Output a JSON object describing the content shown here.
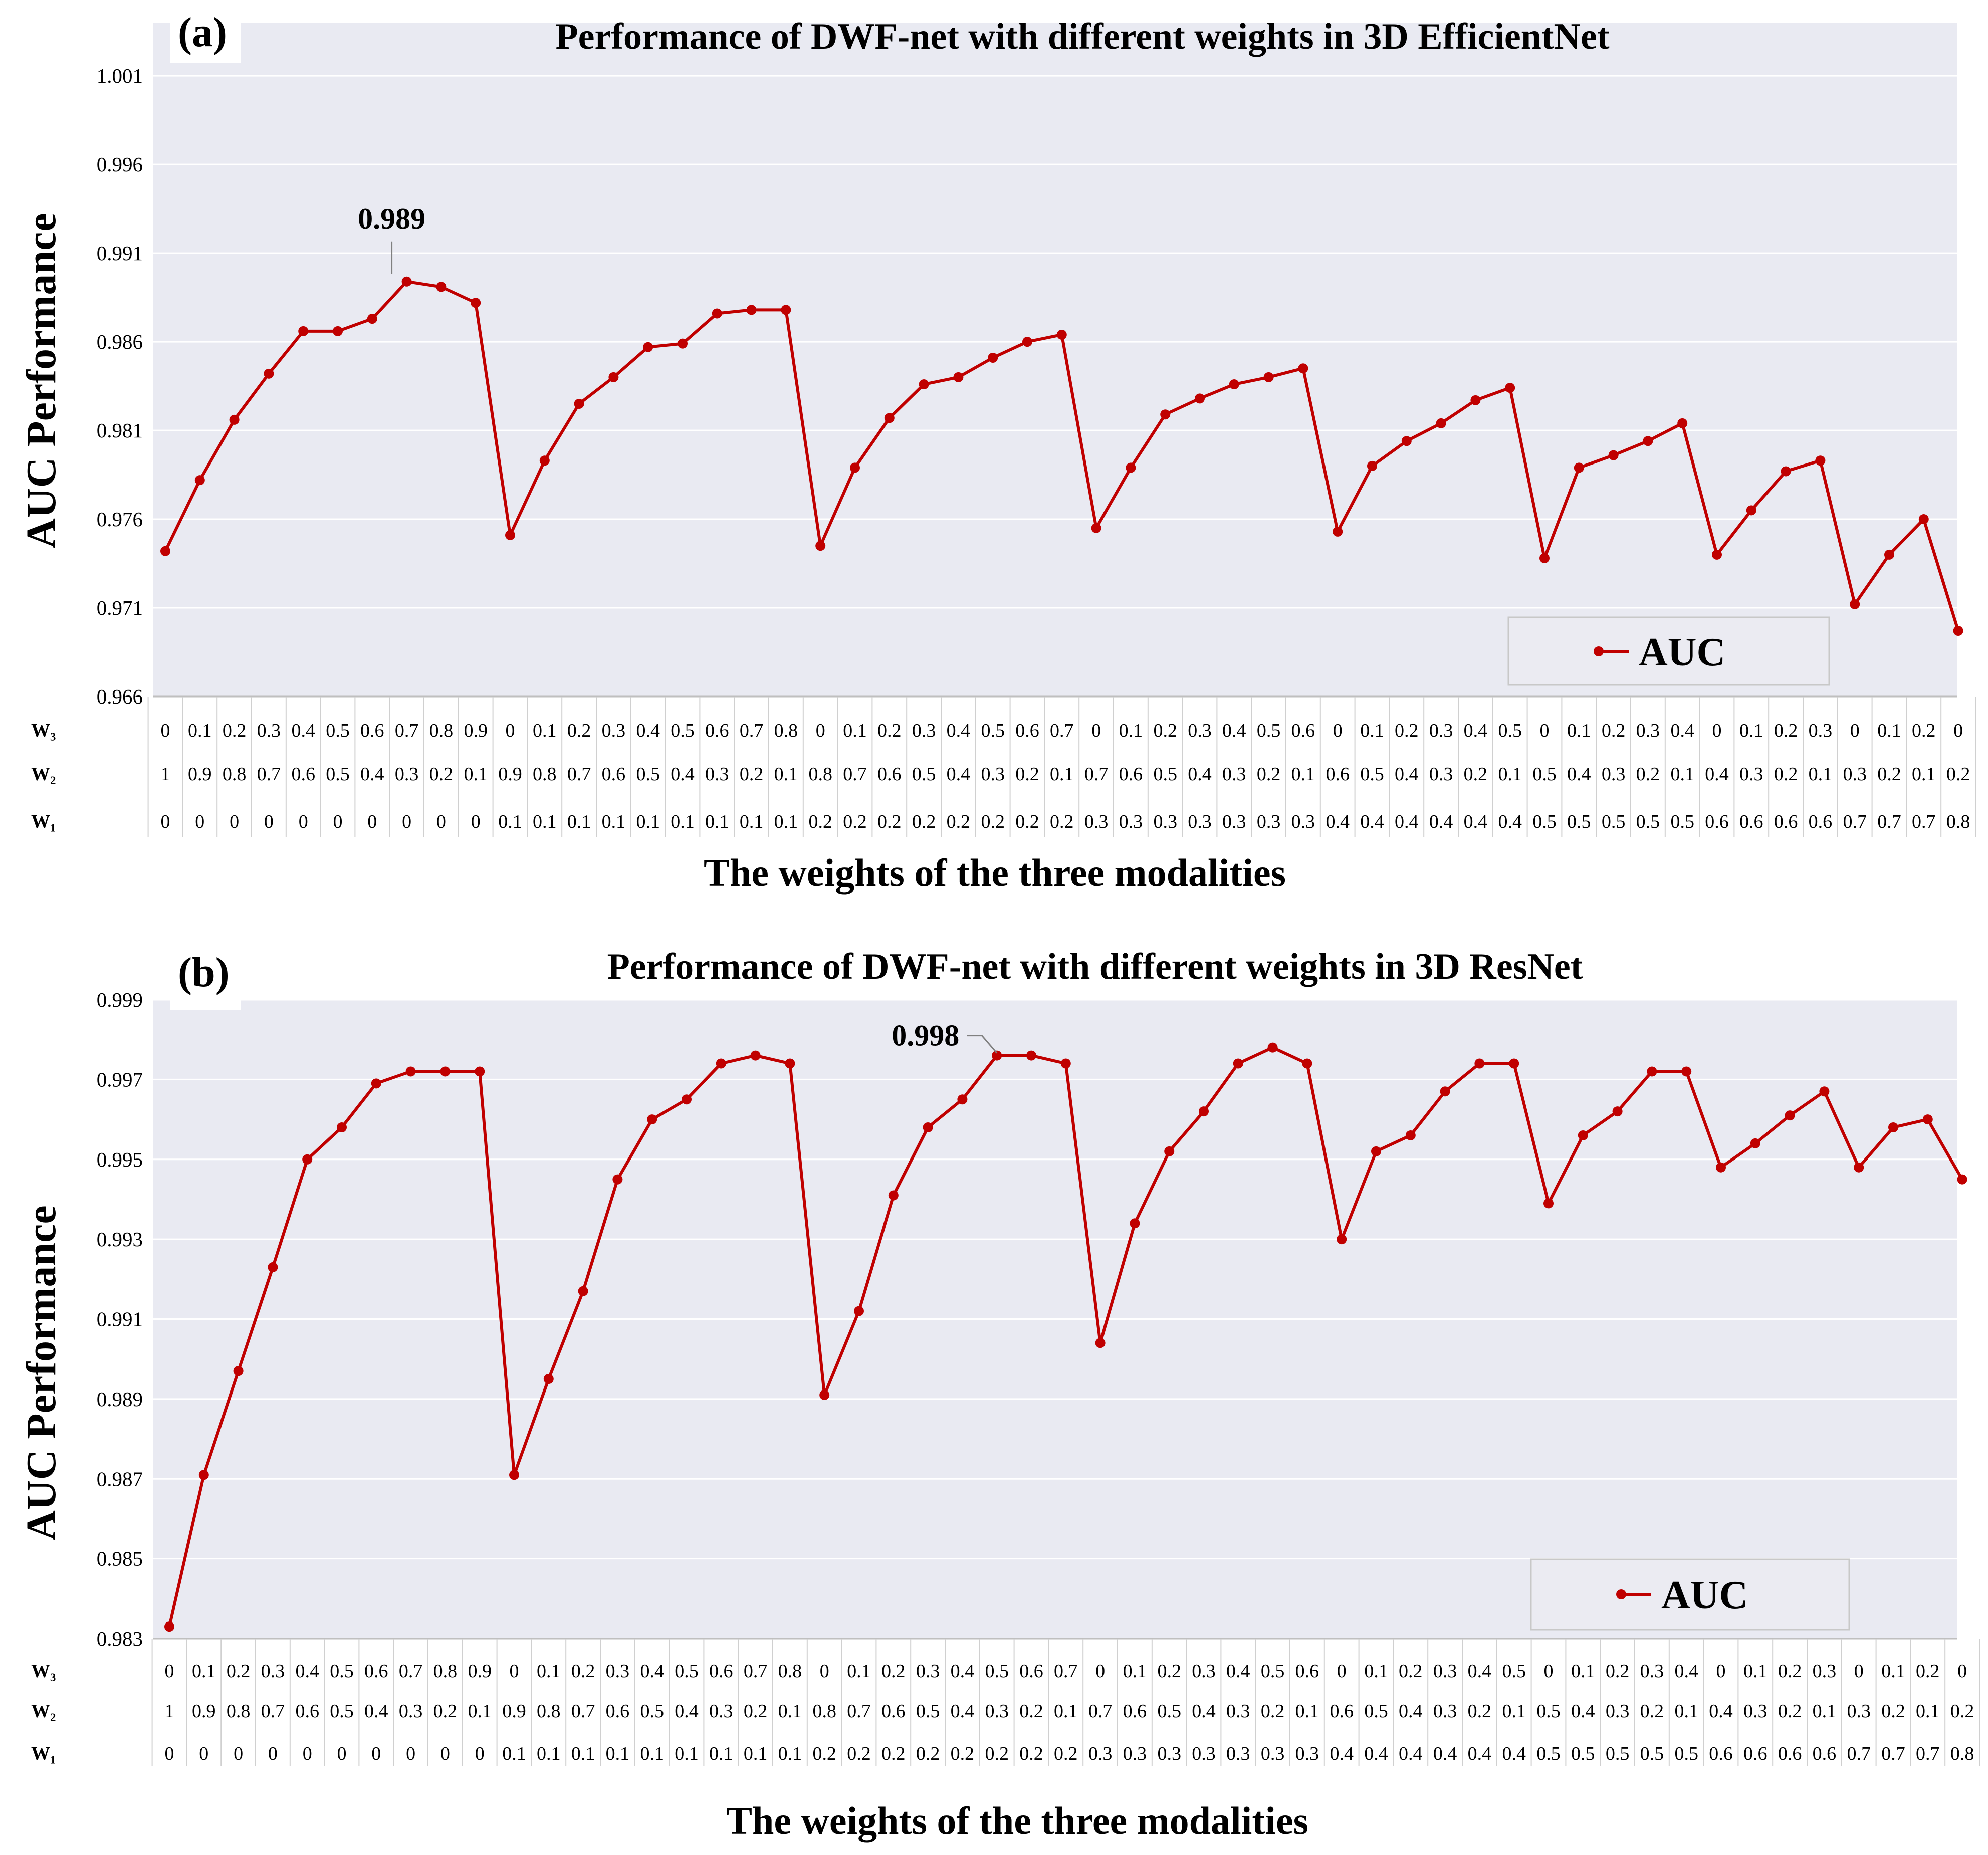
{
  "colors": {
    "plot_bg": "#e9eaf2",
    "grid": "#ffffff",
    "line": "#c00000",
    "legend_bg": "#ebebf2"
  },
  "weight_row_labels": [
    "W₃",
    "W₂",
    "W₁"
  ],
  "chart_data": [
    {
      "panel": "(a)",
      "type": "line",
      "title": "Performance of DWF-net with different weights in 3D EfficientNet",
      "xlabel": "The weights of the three modalities",
      "ylabel": "AUC  Performance",
      "ylim": [
        0.966,
        1.004
      ],
      "yticks": [
        "0.966",
        "0.971",
        "0.976",
        "0.981",
        "0.986",
        "0.991",
        "0.996",
        "1.001"
      ],
      "legend": "AUC",
      "legend_position": "bottom-right",
      "annotation": {
        "text": "0.989",
        "index": 7
      },
      "categories": {
        "w3": [
          "0",
          "0.1",
          "0.2",
          "0.3",
          "0.4",
          "0.5",
          "0.6",
          "0.7",
          "0.8",
          "0.9",
          "0",
          "0.1",
          "0.2",
          "0.3",
          "0.4",
          "0.5",
          "0.6",
          "0.7",
          "0.8",
          "0",
          "0.1",
          "0.2",
          "0.3",
          "0.4",
          "0.5",
          "0.6",
          "0.7",
          "0",
          "0.1",
          "0.2",
          "0.3",
          "0.4",
          "0.5",
          "0.6",
          "0",
          "0.1",
          "0.2",
          "0.3",
          "0.4",
          "0.5",
          "0",
          "0.1",
          "0.2",
          "0.3",
          "0.4",
          "0",
          "0.1",
          "0.2",
          "0.3",
          "0",
          "0.1",
          "0.2",
          "0"
        ],
        "w2": [
          "1",
          "0.9",
          "0.8",
          "0.7",
          "0.6",
          "0.5",
          "0.4",
          "0.3",
          "0.2",
          "0.1",
          "0.9",
          "0.8",
          "0.7",
          "0.6",
          "0.5",
          "0.4",
          "0.3",
          "0.2",
          "0.1",
          "0.8",
          "0.7",
          "0.6",
          "0.5",
          "0.4",
          "0.3",
          "0.2",
          "0.1",
          "0.7",
          "0.6",
          "0.5",
          "0.4",
          "0.3",
          "0.2",
          "0.1",
          "0.6",
          "0.5",
          "0.4",
          "0.3",
          "0.2",
          "0.1",
          "0.5",
          "0.4",
          "0.3",
          "0.2",
          "0.1",
          "0.4",
          "0.3",
          "0.2",
          "0.1",
          "0.3",
          "0.2",
          "0.1",
          "0.2"
        ],
        "w1": [
          "0",
          "0",
          "0",
          "0",
          "0",
          "0",
          "0",
          "0",
          "0",
          "0",
          "0.1",
          "0.1",
          "0.1",
          "0.1",
          "0.1",
          "0.1",
          "0.1",
          "0.1",
          "0.1",
          "0.2",
          "0.2",
          "0.2",
          "0.2",
          "0.2",
          "0.2",
          "0.2",
          "0.2",
          "0.3",
          "0.3",
          "0.3",
          "0.3",
          "0.3",
          "0.3",
          "0.3",
          "0.4",
          "0.4",
          "0.4",
          "0.4",
          "0.4",
          "0.4",
          "0.5",
          "0.5",
          "0.5",
          "0.5",
          "0.5",
          "0.6",
          "0.6",
          "0.6",
          "0.6",
          "0.7",
          "0.7",
          "0.7",
          "0.8"
        ]
      },
      "series": [
        {
          "name": "AUC",
          "values": [
            0.9742,
            0.9782,
            0.9816,
            0.9842,
            0.9866,
            0.9866,
            0.9873,
            0.9894,
            0.9891,
            0.9882,
            0.9751,
            0.9793,
            0.9825,
            0.984,
            0.9857,
            0.9859,
            0.9876,
            0.9878,
            0.9878,
            0.9745,
            0.9789,
            0.9817,
            0.9836,
            0.984,
            0.9851,
            0.986,
            0.9864,
            0.9755,
            0.9789,
            0.9819,
            0.9828,
            0.9836,
            0.984,
            0.9845,
            0.9753,
            0.979,
            0.9804,
            0.9814,
            0.9827,
            0.9834,
            0.9738,
            0.9789,
            0.9796,
            0.9804,
            0.9814,
            0.974,
            0.9765,
            0.9787,
            0.9793,
            0.9712,
            0.974,
            0.976,
            0.9697
          ]
        }
      ]
    },
    {
      "panel": "(b)",
      "type": "line",
      "title": "Performance of DWF-net with different weights in 3D ResNet",
      "xlabel": "The weights of the three modalities",
      "ylabel": "AUC  Performance",
      "ylim": [
        0.983,
        0.999
      ],
      "yticks": [
        "0.983",
        "0.985",
        "0.987",
        "0.989",
        "0.991",
        "0.993",
        "0.995",
        "0.997",
        "0.999"
      ],
      "legend": "AUC",
      "legend_position": "bottom-right",
      "annotation": {
        "text": "0.998",
        "index": 24
      },
      "categories": {
        "w3": [
          "0",
          "0.1",
          "0.2",
          "0.3",
          "0.4",
          "0.5",
          "0.6",
          "0.7",
          "0.8",
          "0.9",
          "0",
          "0.1",
          "0.2",
          "0.3",
          "0.4",
          "0.5",
          "0.6",
          "0.7",
          "0.8",
          "0",
          "0.1",
          "0.2",
          "0.3",
          "0.4",
          "0.5",
          "0.6",
          "0.7",
          "0",
          "0.1",
          "0.2",
          "0.3",
          "0.4",
          "0.5",
          "0.6",
          "0",
          "0.1",
          "0.2",
          "0.3",
          "0.4",
          "0.5",
          "0",
          "0.1",
          "0.2",
          "0.3",
          "0.4",
          "0",
          "0.1",
          "0.2",
          "0.3",
          "0",
          "0.1",
          "0.2",
          "0"
        ],
        "w2": [
          "1",
          "0.9",
          "0.8",
          "0.7",
          "0.6",
          "0.5",
          "0.4",
          "0.3",
          "0.2",
          "0.1",
          "0.9",
          "0.8",
          "0.7",
          "0.6",
          "0.5",
          "0.4",
          "0.3",
          "0.2",
          "0.1",
          "0.8",
          "0.7",
          "0.6",
          "0.5",
          "0.4",
          "0.3",
          "0.2",
          "0.1",
          "0.7",
          "0.6",
          "0.5",
          "0.4",
          "0.3",
          "0.2",
          "0.1",
          "0.6",
          "0.5",
          "0.4",
          "0.3",
          "0.2",
          "0.1",
          "0.5",
          "0.4",
          "0.3",
          "0.2",
          "0.1",
          "0.4",
          "0.3",
          "0.2",
          "0.1",
          "0.3",
          "0.2",
          "0.1",
          "0.2"
        ],
        "w1": [
          "0",
          "0",
          "0",
          "0",
          "0",
          "0",
          "0",
          "0",
          "0",
          "0",
          "0.1",
          "0.1",
          "0.1",
          "0.1",
          "0.1",
          "0.1",
          "0.1",
          "0.1",
          "0.1",
          "0.2",
          "0.2",
          "0.2",
          "0.2",
          "0.2",
          "0.2",
          "0.2",
          "0.2",
          "0.3",
          "0.3",
          "0.3",
          "0.3",
          "0.3",
          "0.3",
          "0.3",
          "0.4",
          "0.4",
          "0.4",
          "0.4",
          "0.4",
          "0.4",
          "0.5",
          "0.5",
          "0.5",
          "0.5",
          "0.5",
          "0.6",
          "0.6",
          "0.6",
          "0.6",
          "0.7",
          "0.7",
          "0.7",
          "0.8"
        ]
      },
      "series": [
        {
          "name": "AUC",
          "values": [
            0.9833,
            0.9871,
            0.9897,
            0.9923,
            0.995,
            0.9958,
            0.9969,
            0.9972,
            0.9972,
            0.9972,
            0.9871,
            0.9895,
            0.9917,
            0.9945,
            0.996,
            0.9965,
            0.9974,
            0.9976,
            0.9974,
            0.9891,
            0.9912,
            0.9941,
            0.9958,
            0.9965,
            0.9976,
            0.9976,
            0.9974,
            0.9904,
            0.9934,
            0.9952,
            0.9962,
            0.9974,
            0.9978,
            0.9974,
            0.993,
            0.9952,
            0.9956,
            0.9967,
            0.9974,
            0.9974,
            0.9939,
            0.9956,
            0.9962,
            0.9972,
            0.9972,
            0.9948,
            0.9954,
            0.9961,
            0.9967,
            0.9948,
            0.9958,
            0.996,
            0.9945
          ]
        }
      ]
    }
  ]
}
